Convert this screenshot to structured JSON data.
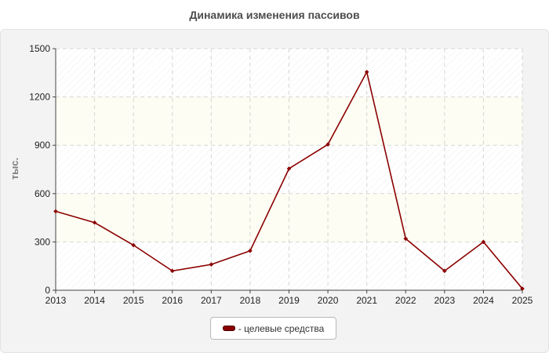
{
  "chart_data": {
    "type": "line",
    "title": "Динамика изменения пассивов",
    "xlabel": "",
    "ylabel": "тыс.",
    "x": [
      "2013",
      "2014",
      "2015",
      "2016",
      "2017",
      "2018",
      "2019",
      "2020",
      "2021",
      "2022",
      "2023",
      "2024",
      "2025"
    ],
    "ylim": [
      0,
      1500
    ],
    "yticks": [
      0,
      300,
      600,
      900,
      1200,
      1500
    ],
    "grid": true,
    "legend_position": "bottom",
    "series": [
      {
        "name": "- целевые средства",
        "color": "#8b0000",
        "values": [
          490,
          420,
          280,
          120,
          160,
          245,
          755,
          905,
          1355,
          320,
          120,
          300,
          10
        ]
      }
    ]
  }
}
